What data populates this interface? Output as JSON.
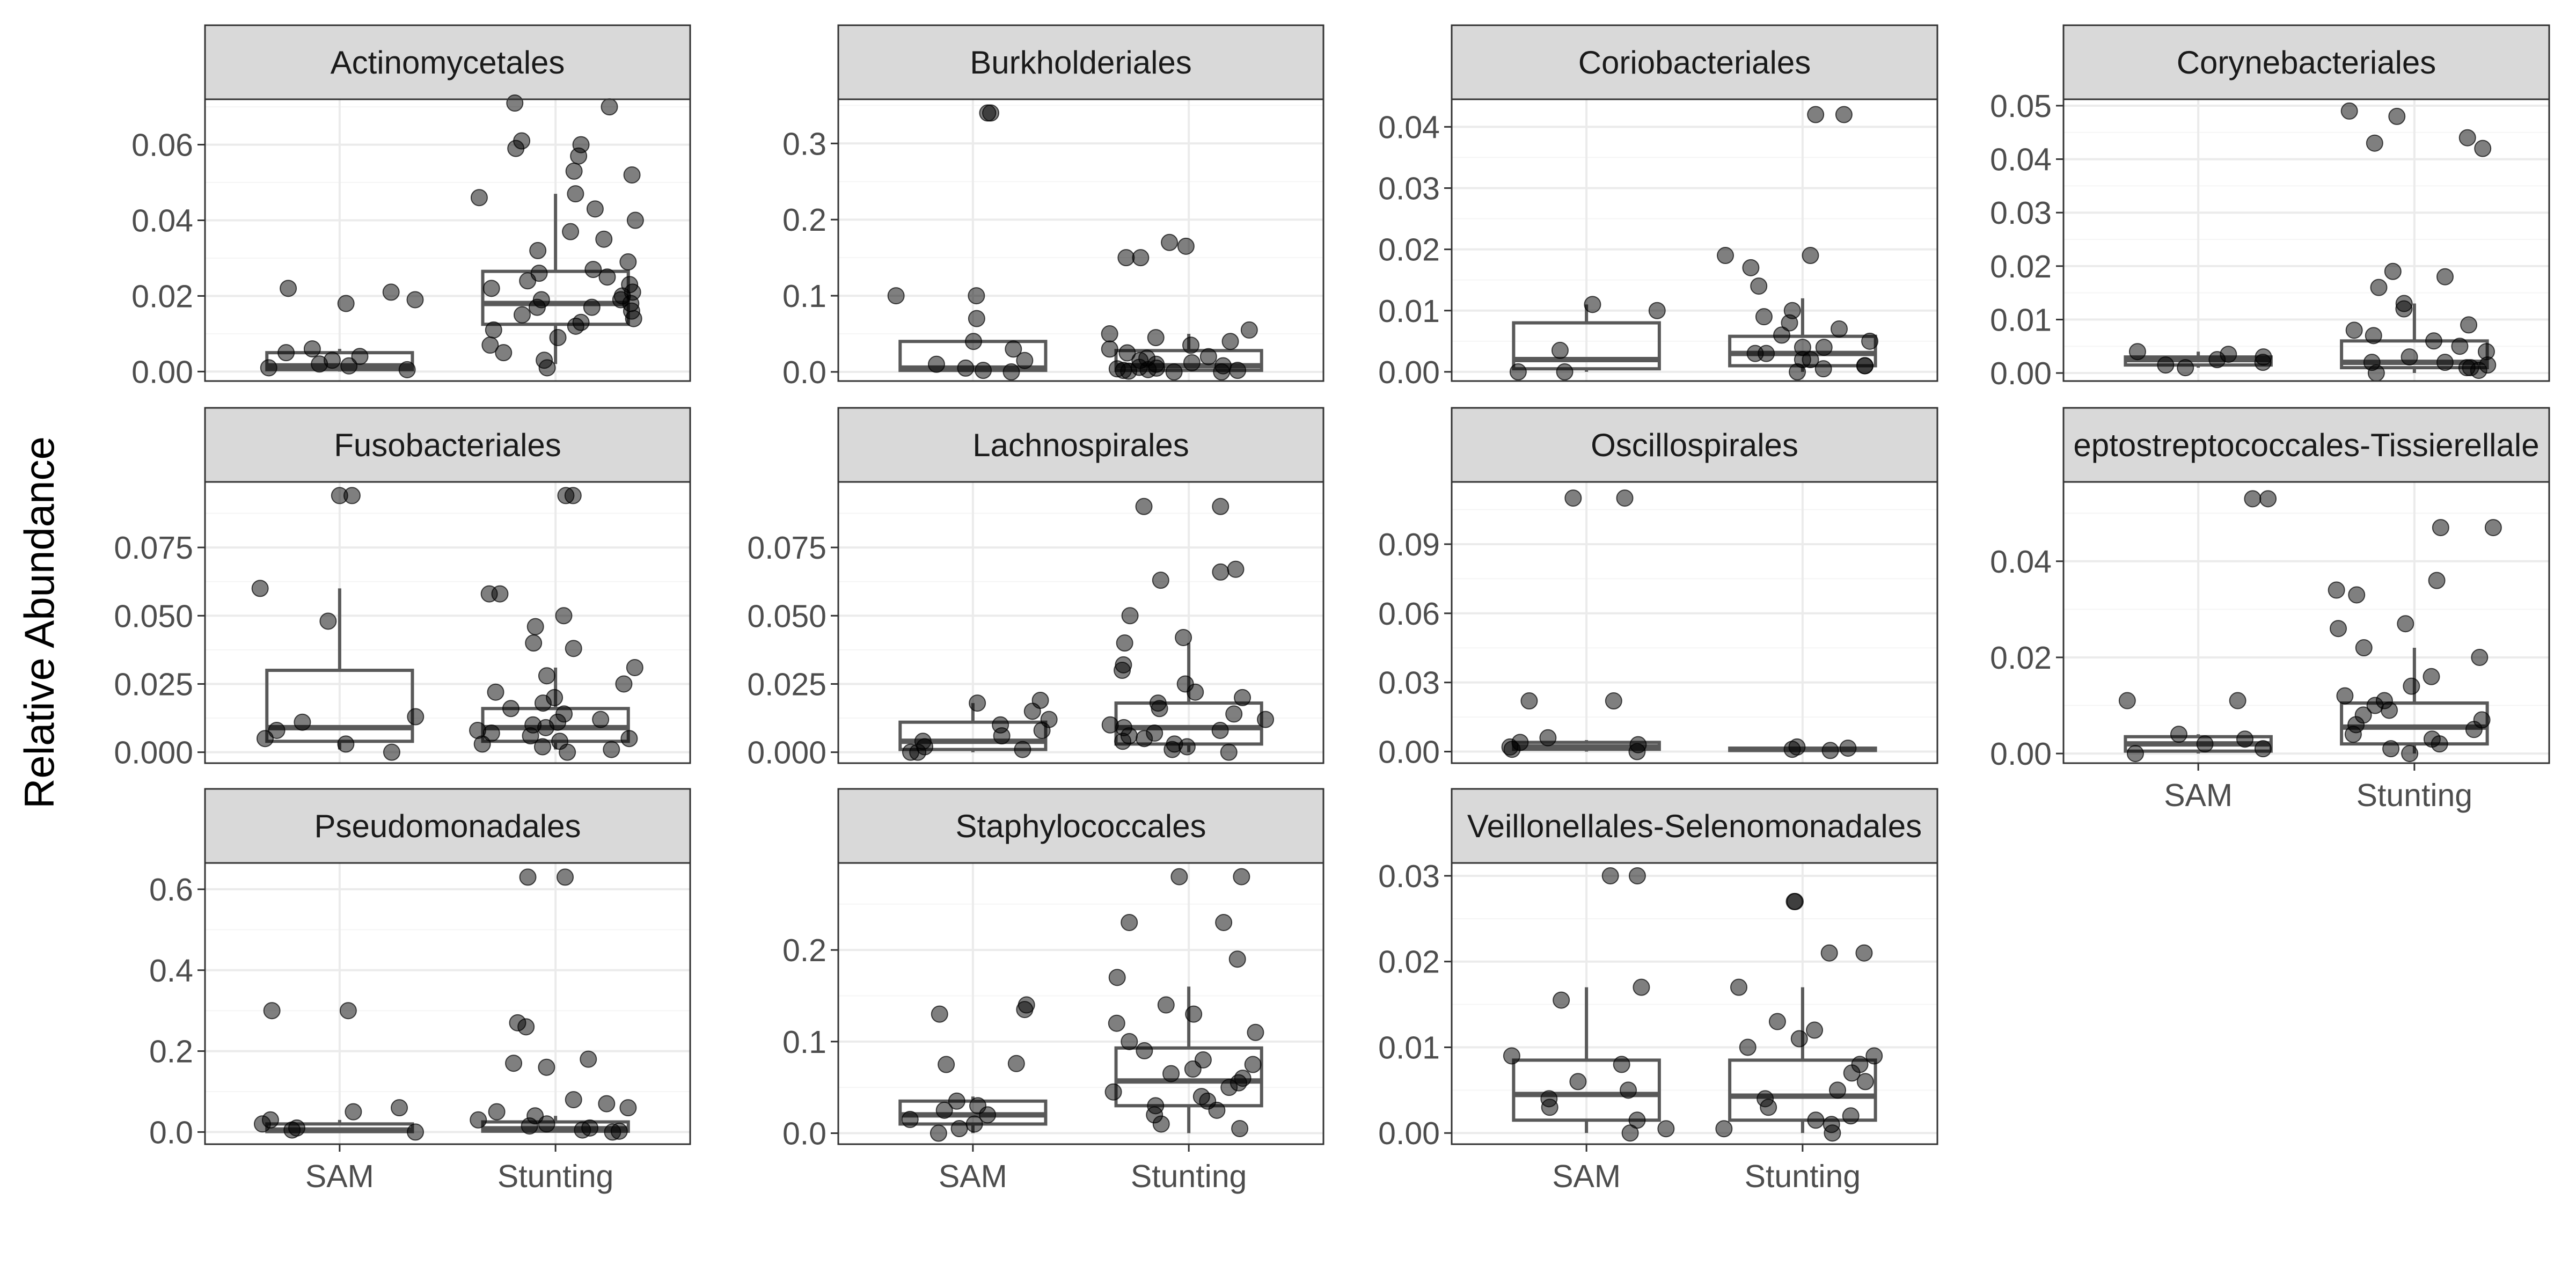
{
  "chart_data": {
    "type": "box",
    "ylabel": "Relative Abundance",
    "groups": [
      "SAM",
      "Stunting"
    ],
    "colors": {
      "strip_fill": "#d9d9d9",
      "frame": "#333333",
      "grid_major": "#ebebeb",
      "grid_minor": "#f5f5f5",
      "box_line": "#595959",
      "point": "#000000",
      "point_opacity": 0.5
    },
    "panels": [
      {
        "title": "Actinomycetales",
        "y_range": [
          -0.0025,
          0.072
        ],
        "y_ticks": [
          0.0,
          0.02,
          0.04,
          0.06
        ],
        "y_tick_labels": [
          "0.00",
          "0.02",
          "0.04",
          "0.06"
        ],
        "x_axis_labels": false,
        "boxes": [
          {
            "group": "SAM",
            "min": 0.0,
            "q1": 0.0005,
            "median": 0.0015,
            "q3": 0.005,
            "max": 0.006
          },
          {
            "group": "Stunting",
            "min": 0.002,
            "q1": 0.0125,
            "median": 0.018,
            "q3": 0.0265,
            "max": 0.047
          }
        ],
        "points": [
          {
            "group": "SAM",
            "values": [
              0.0005,
              0.001,
              0.0015,
              0.002,
              0.003,
              0.004,
              0.005,
              0.006,
              0.018,
              0.019,
              0.021,
              0.022
            ]
          },
          {
            "group": "Stunting",
            "values": [
              0.001,
              0.003,
              0.005,
              0.007,
              0.009,
              0.011,
              0.012,
              0.013,
              0.014,
              0.015,
              0.016,
              0.017,
              0.017,
              0.018,
              0.019,
              0.019,
              0.02,
              0.021,
              0.022,
              0.023,
              0.024,
              0.025,
              0.026,
              0.027,
              0.029,
              0.032,
              0.035,
              0.037,
              0.04,
              0.043,
              0.046,
              0.047,
              0.052,
              0.053,
              0.057,
              0.059,
              0.06,
              0.061,
              0.07,
              0.071
            ]
          }
        ]
      },
      {
        "title": "Burkholderiales",
        "y_range": [
          -0.012,
          0.358
        ],
        "y_ticks": [
          0.0,
          0.1,
          0.2,
          0.3
        ],
        "y_tick_labels": [
          "0.0",
          "0.1",
          "0.2",
          "0.3"
        ],
        "x_axis_labels": false,
        "boxes": [
          {
            "group": "SAM",
            "min": 0.0,
            "q1": 0.002,
            "median": 0.005,
            "q3": 0.04,
            "max": 0.042
          },
          {
            "group": "Stunting",
            "min": 0.0,
            "q1": 0.002,
            "median": 0.008,
            "q3": 0.028,
            "max": 0.05
          }
        ],
        "points": [
          {
            "group": "SAM",
            "values": [
              0.0,
              0.002,
              0.005,
              0.01,
              0.015,
              0.03,
              0.04,
              0.07,
              0.1,
              0.1,
              0.34,
              0.34
            ]
          },
          {
            "group": "Stunting",
            "values": [
              0.0,
              0.0,
              0.001,
              0.002,
              0.002,
              0.003,
              0.004,
              0.005,
              0.006,
              0.008,
              0.01,
              0.012,
              0.015,
              0.018,
              0.02,
              0.025,
              0.03,
              0.035,
              0.04,
              0.045,
              0.05,
              0.055,
              0.15,
              0.15,
              0.165,
              0.17
            ]
          }
        ]
      },
      {
        "title": "Coriobacteriales",
        "y_range": [
          -0.0015,
          0.0445
        ],
        "y_ticks": [
          0.0,
          0.01,
          0.02,
          0.03,
          0.04
        ],
        "y_tick_labels": [
          "0.00",
          "0.01",
          "0.02",
          "0.03",
          "0.04"
        ],
        "x_axis_labels": false,
        "boxes": [
          {
            "group": "SAM",
            "min": 0.0,
            "q1": 0.0005,
            "median": 0.002,
            "q3": 0.008,
            "max": 0.011
          },
          {
            "group": "Stunting",
            "min": 0.0,
            "q1": 0.001,
            "median": 0.003,
            "q3": 0.0058,
            "max": 0.012
          }
        ],
        "points": [
          {
            "group": "SAM",
            "values": [
              0.0,
              0.0,
              0.0035,
              0.01,
              0.011
            ]
          },
          {
            "group": "Stunting",
            "values": [
              0.0,
              0.0005,
              0.001,
              0.001,
              0.002,
              0.002,
              0.003,
              0.003,
              0.004,
              0.004,
              0.005,
              0.006,
              0.007,
              0.008,
              0.009,
              0.01,
              0.014,
              0.017,
              0.019,
              0.019,
              0.042,
              0.042
            ]
          }
        ]
      },
      {
        "title": "Corynebacteriales",
        "y_range": [
          -0.0015,
          0.0512
        ],
        "y_ticks": [
          0.0,
          0.01,
          0.02,
          0.03,
          0.04,
          0.05
        ],
        "y_tick_labels": [
          "0.00",
          "0.01",
          "0.02",
          "0.03",
          "0.04",
          "0.05"
        ],
        "x_axis_labels": false,
        "boxes": [
          {
            "group": "SAM",
            "min": 0.001,
            "q1": 0.0015,
            "median": 0.0025,
            "q3": 0.003,
            "max": 0.004
          },
          {
            "group": "Stunting",
            "min": 0.0,
            "q1": 0.001,
            "median": 0.002,
            "q3": 0.006,
            "max": 0.013
          }
        ],
        "points": [
          {
            "group": "SAM",
            "values": [
              0.001,
              0.0015,
              0.002,
              0.0025,
              0.003,
              0.0035,
              0.004
            ]
          },
          {
            "group": "Stunting",
            "values": [
              0.0,
              0.0005,
              0.001,
              0.001,
              0.0015,
              0.002,
              0.002,
              0.003,
              0.004,
              0.005,
              0.006,
              0.007,
              0.008,
              0.009,
              0.012,
              0.013,
              0.016,
              0.018,
              0.019,
              0.042,
              0.043,
              0.044,
              0.048,
              0.049
            ]
          }
        ]
      },
      {
        "title": "Fusobacteriales",
        "y_range": [
          -0.004,
          0.099
        ],
        "y_ticks": [
          0.0,
          0.025,
          0.05,
          0.075
        ],
        "y_tick_labels": [
          "0.000",
          "0.025",
          "0.050",
          "0.075"
        ],
        "x_axis_labels": false,
        "boxes": [
          {
            "group": "SAM",
            "min": 0.001,
            "q1": 0.004,
            "median": 0.009,
            "q3": 0.03,
            "max": 0.06
          },
          {
            "group": "Stunting",
            "min": 0.001,
            "q1": 0.004,
            "median": 0.009,
            "q3": 0.016,
            "max": 0.031
          }
        ],
        "points": [
          {
            "group": "SAM",
            "values": [
              0.0,
              0.003,
              0.005,
              0.008,
              0.011,
              0.013,
              0.048,
              0.06,
              0.094,
              0.094
            ]
          },
          {
            "group": "Stunting",
            "values": [
              0.0,
              0.001,
              0.002,
              0.003,
              0.004,
              0.005,
              0.006,
              0.007,
              0.008,
              0.009,
              0.01,
              0.011,
              0.012,
              0.014,
              0.016,
              0.018,
              0.02,
              0.022,
              0.025,
              0.028,
              0.031,
              0.038,
              0.04,
              0.046,
              0.05,
              0.058,
              0.058,
              0.094,
              0.094
            ]
          }
        ]
      },
      {
        "title": "Lachnospirales",
        "y_range": [
          -0.004,
          0.099
        ],
        "y_ticks": [
          0.0,
          0.025,
          0.05,
          0.075
        ],
        "y_tick_labels": [
          "0.000",
          "0.025",
          "0.050",
          "0.075"
        ],
        "x_axis_labels": false,
        "boxes": [
          {
            "group": "SAM",
            "min": 0.0,
            "q1": 0.001,
            "median": 0.004,
            "q3": 0.011,
            "max": 0.018
          },
          {
            "group": "Stunting",
            "min": 0.0,
            "q1": 0.003,
            "median": 0.009,
            "q3": 0.018,
            "max": 0.04
          }
        ],
        "points": [
          {
            "group": "SAM",
            "values": [
              0.0,
              0.0,
              0.001,
              0.002,
              0.004,
              0.006,
              0.008,
              0.01,
              0.012,
              0.015,
              0.018,
              0.019
            ]
          },
          {
            "group": "Stunting",
            "values": [
              0.0,
              0.001,
              0.002,
              0.003,
              0.004,
              0.005,
              0.006,
              0.007,
              0.008,
              0.009,
              0.01,
              0.012,
              0.014,
              0.016,
              0.018,
              0.02,
              0.022,
              0.025,
              0.03,
              0.032,
              0.04,
              0.042,
              0.05,
              0.063,
              0.066,
              0.067,
              0.09,
              0.09
            ]
          }
        ]
      },
      {
        "title": "Oscillospirales",
        "y_range": [
          -0.005,
          0.117
        ],
        "y_ticks": [
          0.0,
          0.03,
          0.06,
          0.09
        ],
        "y_tick_labels": [
          "0.00",
          "0.03",
          "0.06",
          "0.09"
        ],
        "x_axis_labels": false,
        "boxes": [
          {
            "group": "SAM",
            "min": 0.0,
            "q1": 0.001,
            "median": 0.002,
            "q3": 0.004,
            "max": 0.005
          },
          {
            "group": "Stunting",
            "min": 0.0,
            "q1": 0.0005,
            "median": 0.001,
            "q3": 0.0015,
            "max": 0.002
          }
        ],
        "points": [
          {
            "group": "SAM",
            "values": [
              0.0,
              0.001,
              0.002,
              0.003,
              0.004,
              0.006,
              0.022,
              0.022,
              0.11,
              0.11
            ]
          },
          {
            "group": "Stunting",
            "values": [
              0.0005,
              0.001,
              0.0015,
              0.002
            ]
          }
        ]
      },
      {
        "title": "Peptostreptococcales-Tissierellales",
        "y_range": [
          -0.002,
          0.0565
        ],
        "y_ticks": [
          0.0,
          0.02,
          0.04
        ],
        "y_tick_labels": [
          "0.00",
          "0.02",
          "0.04"
        ],
        "x_axis_labels": true,
        "boxes": [
          {
            "group": "SAM",
            "min": 0.0,
            "q1": 0.0005,
            "median": 0.002,
            "q3": 0.0035,
            "max": 0.004
          },
          {
            "group": "Stunting",
            "min": 0.0,
            "q1": 0.002,
            "median": 0.0055,
            "q3": 0.0105,
            "max": 0.022
          }
        ],
        "points": [
          {
            "group": "SAM",
            "values": [
              0.0,
              0.001,
              0.002,
              0.003,
              0.004,
              0.011,
              0.011,
              0.053,
              0.053
            ]
          },
          {
            "group": "Stunting",
            "values": [
              0.0,
              0.001,
              0.002,
              0.003,
              0.004,
              0.005,
              0.006,
              0.007,
              0.008,
              0.009,
              0.01,
              0.011,
              0.012,
              0.014,
              0.016,
              0.02,
              0.022,
              0.026,
              0.027,
              0.033,
              0.034,
              0.036,
              0.047,
              0.047
            ]
          }
        ]
      },
      {
        "title": "Pseudomonadales",
        "y_range": [
          -0.03,
          0.665
        ],
        "y_ticks": [
          0.0,
          0.2,
          0.4,
          0.6
        ],
        "y_tick_labels": [
          "0.0",
          "0.2",
          "0.4",
          "0.6"
        ],
        "x_axis_labels": true,
        "boxes": [
          {
            "group": "SAM",
            "min": 0.0,
            "q1": 0.001,
            "median": 0.005,
            "q3": 0.02,
            "max": 0.03
          },
          {
            "group": "Stunting",
            "min": 0.0,
            "q1": 0.002,
            "median": 0.008,
            "q3": 0.025,
            "max": 0.04
          }
        ],
        "points": [
          {
            "group": "SAM",
            "values": [
              0.0,
              0.005,
              0.01,
              0.02,
              0.03,
              0.05,
              0.06,
              0.3,
              0.3
            ]
          },
          {
            "group": "Stunting",
            "values": [
              0.0,
              0.002,
              0.005,
              0.01,
              0.015,
              0.02,
              0.03,
              0.04,
              0.05,
              0.06,
              0.07,
              0.08,
              0.16,
              0.17,
              0.18,
              0.26,
              0.27,
              0.63,
              0.63
            ]
          }
        ]
      },
      {
        "title": "Staphylococcales",
        "y_range": [
          -0.012,
          0.295
        ],
        "y_ticks": [
          0.0,
          0.1,
          0.2
        ],
        "y_tick_labels": [
          "0.0",
          "0.1",
          "0.2"
        ],
        "x_axis_labels": true,
        "boxes": [
          {
            "group": "SAM",
            "min": 0.0,
            "q1": 0.01,
            "median": 0.02,
            "q3": 0.035,
            "max": 0.04
          },
          {
            "group": "Stunting",
            "min": 0.0,
            "q1": 0.03,
            "median": 0.057,
            "q3": 0.093,
            "max": 0.16
          }
        ],
        "points": [
          {
            "group": "SAM",
            "values": [
              0.0,
              0.005,
              0.01,
              0.015,
              0.02,
              0.025,
              0.03,
              0.035,
              0.075,
              0.076,
              0.13,
              0.135,
              0.14
            ]
          },
          {
            "group": "Stunting",
            "values": [
              0.005,
              0.01,
              0.02,
              0.025,
              0.03,
              0.035,
              0.04,
              0.045,
              0.05,
              0.055,
              0.06,
              0.065,
              0.07,
              0.075,
              0.08,
              0.09,
              0.1,
              0.11,
              0.12,
              0.13,
              0.14,
              0.17,
              0.19,
              0.23,
              0.23,
              0.28,
              0.28
            ]
          }
        ]
      },
      {
        "title": "Veillonellales-Selenomonadales",
        "y_range": [
          -0.0013,
          0.0315
        ],
        "y_ticks": [
          0.0,
          0.01,
          0.02,
          0.03
        ],
        "y_tick_labels": [
          "0.00",
          "0.01",
          "0.02",
          "0.03"
        ],
        "x_axis_labels": true,
        "boxes": [
          {
            "group": "SAM",
            "min": 0.0,
            "q1": 0.0015,
            "median": 0.0045,
            "q3": 0.0085,
            "max": 0.017
          },
          {
            "group": "Stunting",
            "min": 0.0,
            "q1": 0.0015,
            "median": 0.0043,
            "q3": 0.0085,
            "max": 0.017
          }
        ],
        "points": [
          {
            "group": "SAM",
            "values": [
              0.0,
              0.0005,
              0.0015,
              0.003,
              0.004,
              0.005,
              0.006,
              0.008,
              0.009,
              0.0155,
              0.017,
              0.03,
              0.03
            ]
          },
          {
            "group": "Stunting",
            "values": [
              0.0,
              0.0005,
              0.001,
              0.0015,
              0.002,
              0.003,
              0.004,
              0.005,
              0.006,
              0.007,
              0.008,
              0.009,
              0.01,
              0.011,
              0.012,
              0.013,
              0.017,
              0.021,
              0.021,
              0.027,
              0.027
            ]
          }
        ]
      }
    ]
  }
}
